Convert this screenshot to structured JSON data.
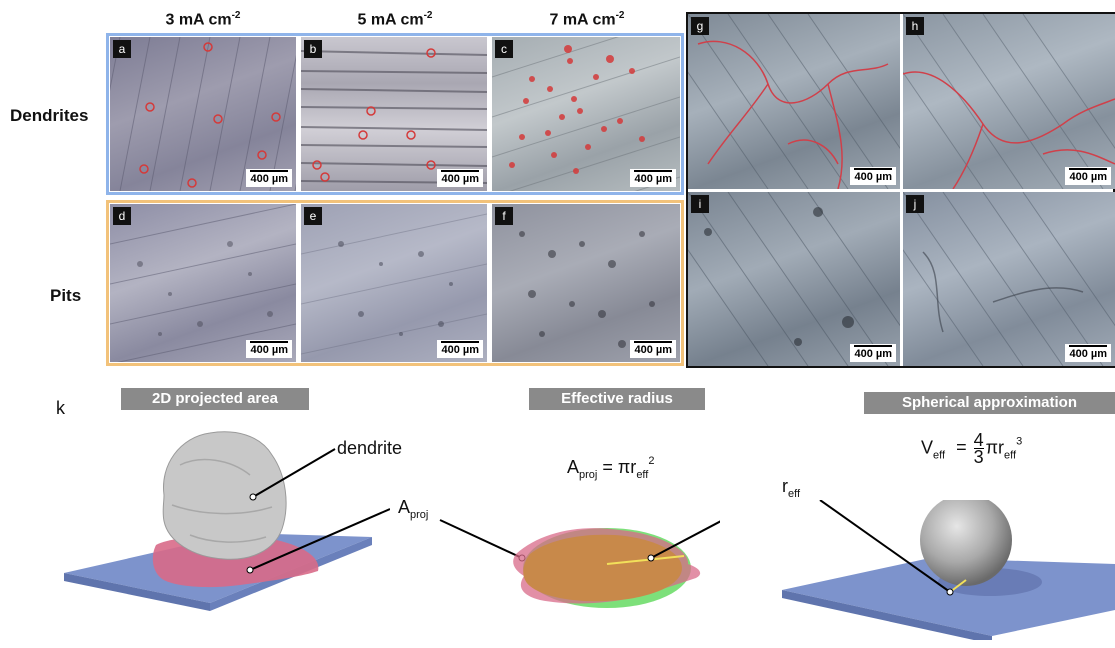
{
  "columns": [
    {
      "label": "3 mA cm",
      "exp": "-2"
    },
    {
      "label": "5 mA cm",
      "exp": "-2"
    },
    {
      "label": "7 mA cm",
      "exp": "-2"
    }
  ],
  "rows": {
    "dendrites": "Dendrites",
    "pits": "Pits"
  },
  "panels": {
    "a": "a",
    "b": "b",
    "c": "c",
    "d": "d",
    "e": "e",
    "f": "f",
    "g": "g",
    "h": "h",
    "i": "i",
    "j": "j"
  },
  "scale_bar": "400 µm",
  "section_k": {
    "label": "k",
    "tags": {
      "projected": "2D projected area",
      "radius": "Effective radius",
      "spherical": "Spherical approximation"
    },
    "annotations": {
      "dendrite": "dendrite",
      "a_proj": "A",
      "a_proj_sub": "proj",
      "r_eff": "r",
      "r_eff_sub": "eff"
    },
    "eq_area": {
      "lhs": "A",
      "lhs_sub": "proj",
      "rhs": "= πr",
      "rhs_sub": "eff",
      "rhs_sup": "2"
    },
    "eq_volume": {
      "lhs": "V",
      "lhs_sub": "eff",
      "eq": "=",
      "num": "4",
      "den": "3",
      "rhs": "πr",
      "rhs_sub": "eff",
      "rhs_sup": "3"
    }
  },
  "colors": {
    "dendrite_frame": "#8fb4ea",
    "pit_frame": "#f2c27a",
    "plate": "#7d93cc",
    "projection": "#d86a88",
    "circle_green": "#7de07a",
    "blob_brown": "#c8894a",
    "tag_bg": "#8a8a8a"
  }
}
